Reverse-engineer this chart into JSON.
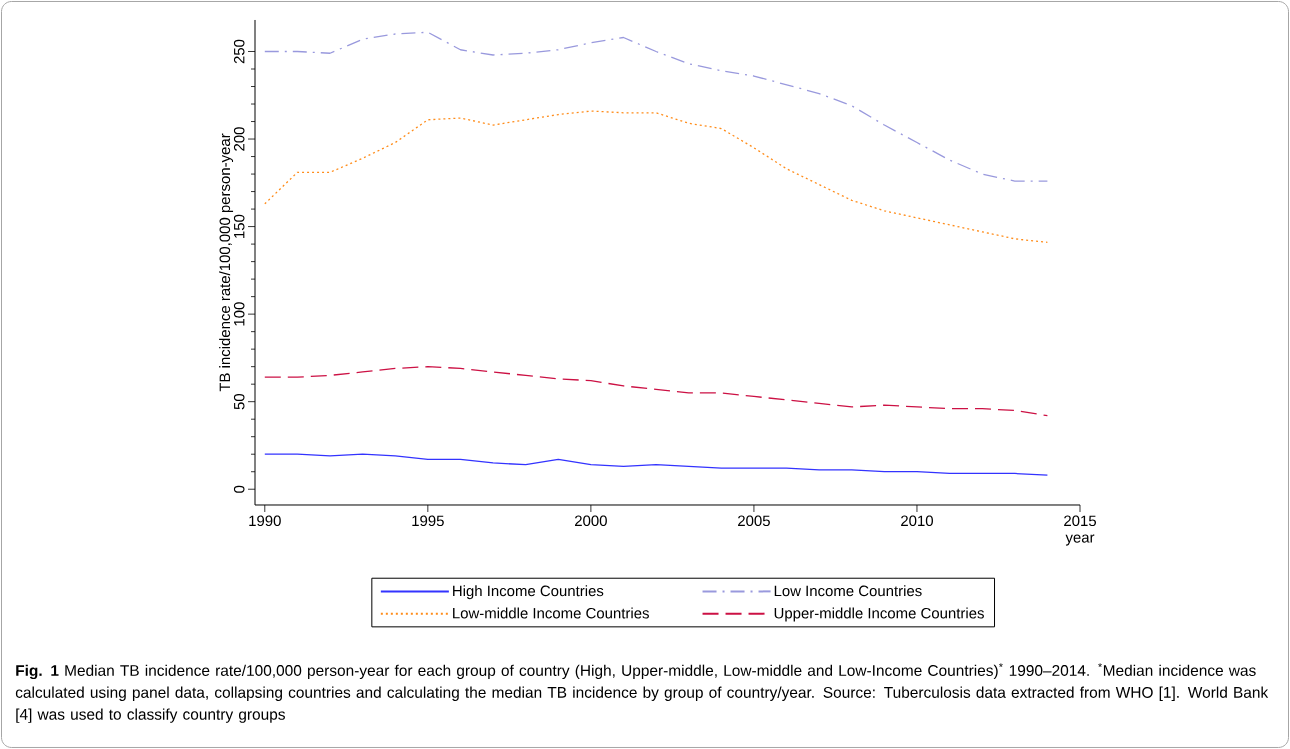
{
  "chart_data": {
    "type": "line",
    "ylabel": "TB incidence rate/100,000 person-year",
    "xlabel": "year",
    "annotations": [
      "**Fig. 1** Median TB incidence rate/100,000 person-year for each group of country (High, Upper-middle, Low-middle and Low-Income Countries)$^{*}$ 1990–2014. $^{*}$Median incidence was calculated using panel data, collapsing countries and calculating the median TB incidence by group of country/year. Source: Tuberculosis data extracted from WHO [1]. World Bank [4] was used to classify country groups"
    ],
    "x": [
      1990,
      1991,
      1992,
      1993,
      1994,
      1995,
      1996,
      1997,
      1998,
      1999,
      2000,
      2001,
      2002,
      2003,
      2004,
      2005,
      2006,
      2007,
      2008,
      2009,
      2010,
      2011,
      2012,
      2013,
      2014
    ],
    "series": [
      {
        "name": "High Income Countries",
        "color": "#3333ff",
        "line_style": "solid",
        "values": [
          20,
          20,
          19,
          20,
          19,
          17,
          17,
          15,
          14,
          17,
          14,
          13,
          14,
          13,
          12,
          12,
          12,
          11,
          11,
          10,
          10,
          9,
          9,
          9,
          8
        ]
      },
      {
        "name": "Low Income Countries",
        "color": "#9999dd",
        "line_style": "dashdot",
        "values": [
          250,
          250,
          249,
          257,
          260,
          261,
          251,
          248,
          249,
          251,
          255,
          258,
          250,
          243,
          239,
          236,
          231,
          226,
          219,
          208,
          198,
          188,
          180,
          176,
          176
        ]
      },
      {
        "name": "Low-middle Income Countries",
        "color": "#ff8c1a",
        "line_style": "dotted",
        "values": [
          163,
          181,
          181,
          189,
          198,
          211,
          212,
          208,
          211,
          214,
          216,
          215,
          215,
          209,
          206,
          195,
          183,
          174,
          165,
          159,
          155,
          151,
          147,
          143,
          141
        ]
      },
      {
        "name": "Upper-middle Income Countries",
        "color": "#cc1144",
        "line_style": "dashed",
        "values": [
          64,
          64,
          65,
          67,
          69,
          70,
          69,
          67,
          65,
          63,
          62,
          59,
          57,
          55,
          55,
          53,
          51,
          49,
          47,
          48,
          47,
          46,
          46,
          45,
          42
        ]
      }
    ],
    "xlim": [
      1989.7,
      2015
    ],
    "ylim": [
      -9,
      268
    ],
    "xticks": [
      1990,
      1995,
      2000,
      2005,
      2010,
      2015
    ],
    "yticks": [
      0,
      50,
      100,
      150,
      200,
      250
    ],
    "legend": "bottom",
    "marker": "none"
  }
}
